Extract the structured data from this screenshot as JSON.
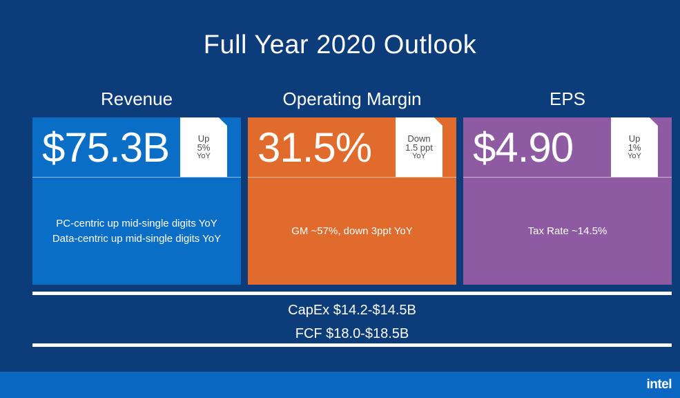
{
  "title": "Full Year 2020 Outlook",
  "cards": [
    {
      "heading": "Revenue",
      "value": "$75.3B",
      "badge": [
        "Up",
        "5%",
        "YoY"
      ],
      "lines": [
        "PC-centric up mid-single digits YoY",
        "Data-centric up mid-single digits YoY"
      ],
      "color": "#0b6ec6"
    },
    {
      "heading": "Operating Margin",
      "value": "31.5%",
      "badge": [
        "Down",
        "1.5 ppt",
        "YoY"
      ],
      "lines": [
        "GM ~57%, down 3ppt YoY"
      ],
      "color": "#e06b2c"
    },
    {
      "heading": "EPS",
      "value": "$4.90",
      "badge": [
        "Up",
        "1%",
        "YoY"
      ],
      "lines": [
        "Tax Rate ~14.5%"
      ],
      "color": "#8e5ba3"
    }
  ],
  "footer": {
    "capex": "CapEx $14.2-$14.5B",
    "fcf": "FCF $18.0-$18.5B"
  },
  "logo": "intel"
}
